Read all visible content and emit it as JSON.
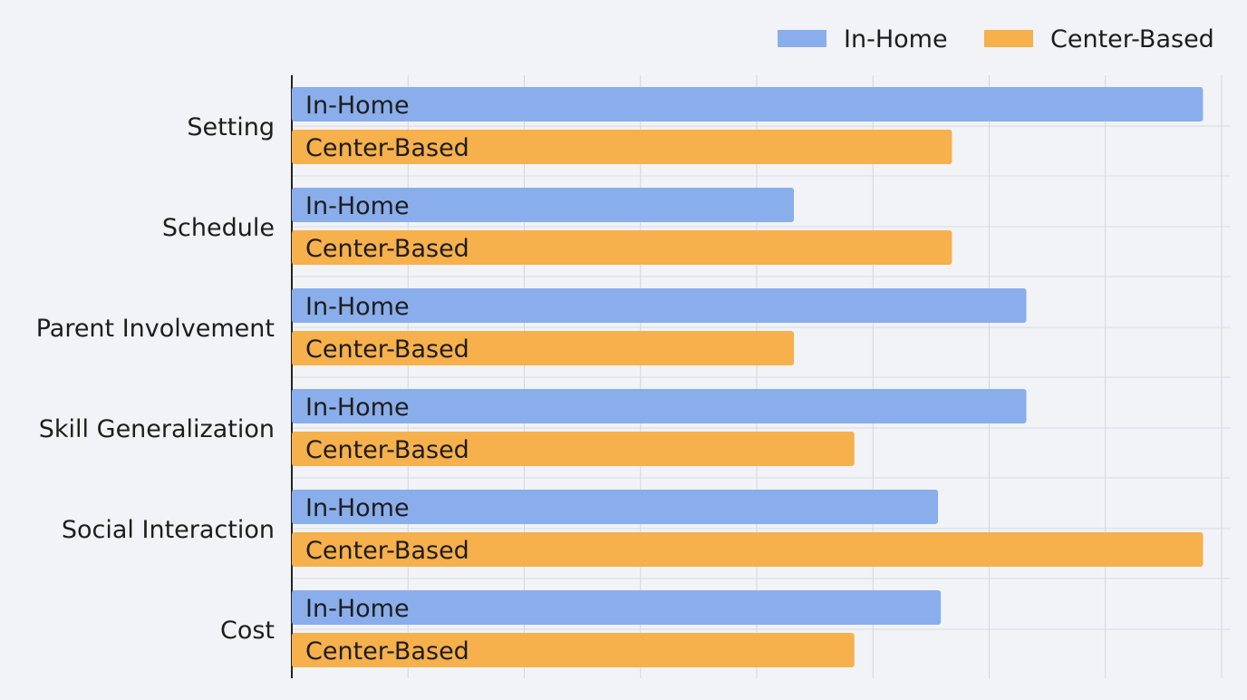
{
  "chart_data": {
    "type": "bar",
    "orientation": "horizontal",
    "title": "",
    "xlabel": "",
    "ylabel": "",
    "categories": [
      "Setting",
      "Schedule",
      "Parent Involvement",
      "Skill Generalization",
      "Social Interaction",
      "Cost"
    ],
    "series": [
      {
        "name": "In-Home",
        "color": "#8aaeeb",
        "values": [
          9.8,
          5.4,
          7.9,
          7.9,
          6.95,
          6.98
        ]
      },
      {
        "name": "Center-Based",
        "color": "#f6b04c",
        "values": [
          7.1,
          7.1,
          5.4,
          6.05,
          9.8,
          6.05
        ]
      }
    ],
    "xlim": [
      0,
      10
    ],
    "grid": true,
    "legend_position": "top-right",
    "bar_labels": "series-name-inside"
  }
}
